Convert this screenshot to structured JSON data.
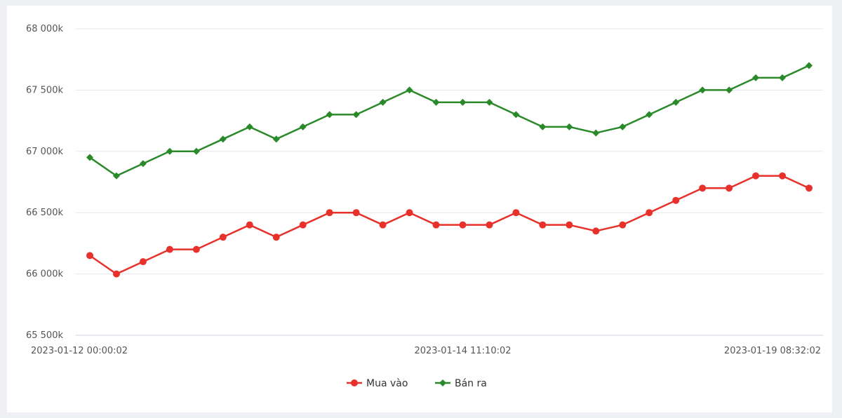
{
  "chart_data": {
    "type": "line",
    "title": "",
    "xlabel": "",
    "ylabel": "",
    "ylim": [
      65500,
      68000
    ],
    "yticks": [
      {
        "value": 68000,
        "label": "68 000k"
      },
      {
        "value": 67500,
        "label": "67 500k"
      },
      {
        "value": 67000,
        "label": "67 000k"
      },
      {
        "value": 66500,
        "label": "66 500k"
      },
      {
        "value": 66000,
        "label": "66 000k"
      },
      {
        "value": 65500,
        "label": "65 500k"
      }
    ],
    "xtick_labels": [
      {
        "index": 0,
        "label": "2023-01-12 00:00:02"
      },
      {
        "index": 14,
        "label": "2023-01-14 11:10:02"
      },
      {
        "index": 28,
        "label": "2023-01-19 08:32:02"
      }
    ],
    "grid": true,
    "legend_position": "bottom-center",
    "series": [
      {
        "name": "Mua vào",
        "color": "#e8312a",
        "marker": "circle",
        "values": [
          66150,
          66000,
          66100,
          66200,
          66200,
          66300,
          66400,
          66300,
          66400,
          66500,
          66500,
          66400,
          66500,
          66400,
          66400,
          66400,
          66500,
          66400,
          66400,
          66350,
          66400,
          66500,
          66600,
          66700,
          66700,
          66800,
          66800,
          66700
        ]
      },
      {
        "name": "Bán ra",
        "color": "#2a8a2a",
        "marker": "diamond",
        "values": [
          66950,
          66800,
          66900,
          67000,
          67000,
          67100,
          67200,
          67100,
          67200,
          67300,
          67300,
          67400,
          67500,
          67400,
          67400,
          67400,
          67300,
          67200,
          67200,
          67150,
          67200,
          67300,
          67400,
          67500,
          67500,
          67600,
          67600,
          67700
        ]
      }
    ]
  }
}
